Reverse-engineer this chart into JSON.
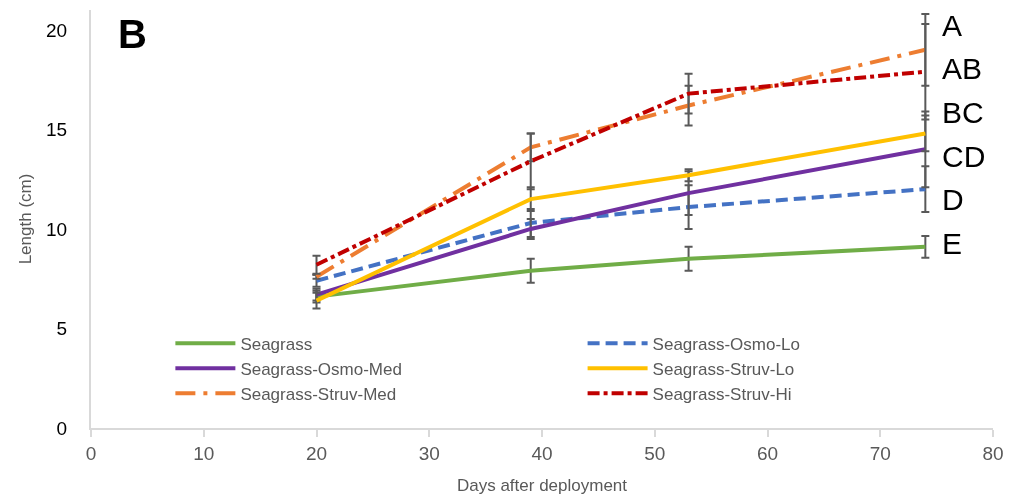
{
  "chart_data": {
    "type": "line",
    "xlabel": "Days after deployment",
    "ylabel": "Length (cm)",
    "annotations": [
      "B",
      "A",
      "AB",
      "BC",
      "CD",
      "D",
      "E"
    ],
    "x": [
      20,
      39,
      53,
      74
    ],
    "series": [
      {
        "name": "Seagrass",
        "color": "#70ad47",
        "line_style": "solid",
        "values": [
          6.6,
          7.9,
          8.5,
          9.1
        ],
        "errors": [
          0.3,
          0.6,
          0.6,
          0.55
        ]
      },
      {
        "name": "Seagrass-Osmo-Lo",
        "color": "#4472c4",
        "line_style": "dashed",
        "values": [
          7.4,
          10.3,
          11.1,
          12.0
        ],
        "errors": [
          0.3,
          0.7,
          1.1,
          1.15
        ]
      },
      {
        "name": "Seagrass-Osmo-Med",
        "color": "#7030a0",
        "line_style": "solid",
        "values": [
          6.7,
          10.0,
          11.8,
          14.0
        ],
        "errors": [
          0.3,
          0.5,
          1.1,
          1.9
        ]
      },
      {
        "name": "Seagrass-Struv-Lo",
        "color": "#ffc000",
        "line_style": "solid",
        "values": [
          6.4,
          11.5,
          12.7,
          14.8
        ],
        "errors": [
          0.4,
          0.6,
          0.3,
          0.9
        ]
      },
      {
        "name": "Seagrass-Struv-Med",
        "color": "#ed7d31",
        "line_style": "longdashdot",
        "values": [
          7.6,
          14.1,
          16.2,
          19.0
        ],
        "errors": [
          0.1,
          0.7,
          1.0,
          1.8
        ]
      },
      {
        "name": "Seagrass-Struv-Hi",
        "color": "#c00000",
        "line_style": "dashdot",
        "values": [
          8.2,
          13.4,
          16.8,
          17.9
        ],
        "errors": [
          0.45,
          1.4,
          1.0,
          2.4
        ]
      }
    ],
    "xlim": [
      0,
      80
    ],
    "xticks": [
      0,
      10,
      20,
      30,
      40,
      50,
      60,
      70,
      80
    ],
    "ylim": [
      0,
      21
    ],
    "yticks": [
      0,
      5,
      10,
      15,
      20
    ],
    "grid": false,
    "legend": "bottom"
  }
}
